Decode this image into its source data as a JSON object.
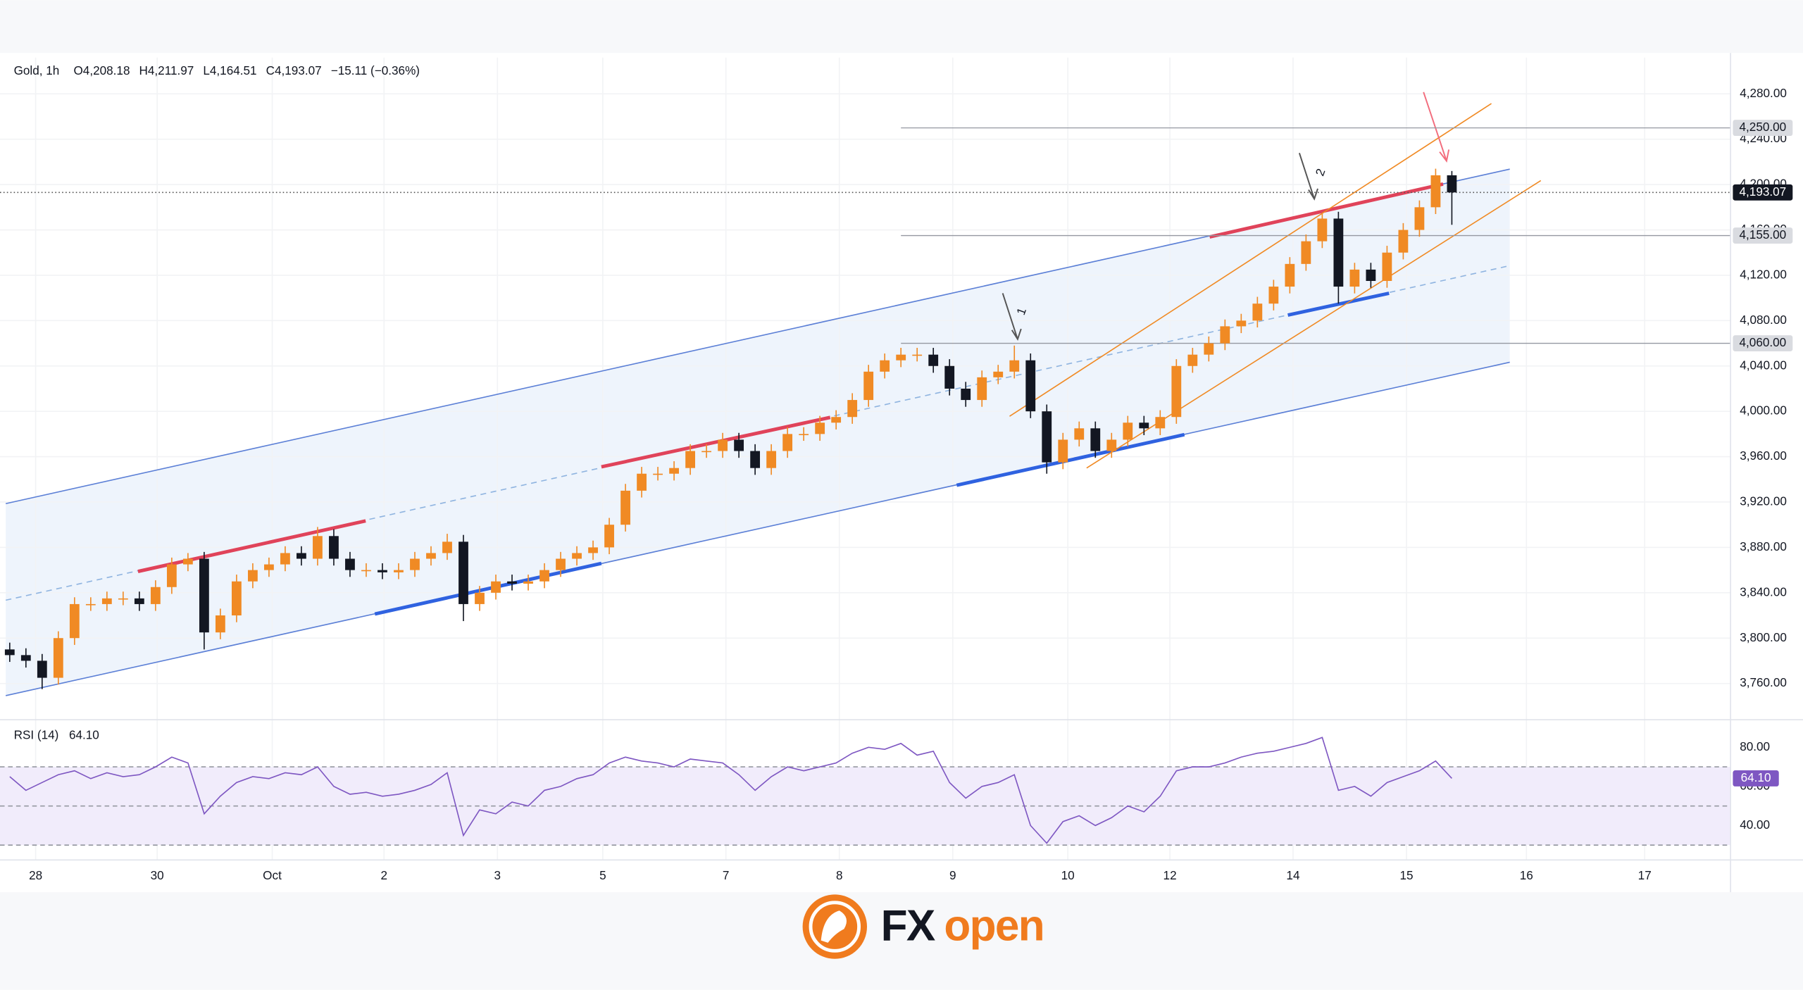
{
  "chart_data": [
    {
      "type": "candlestick",
      "title": "Gold, 1h",
      "legend_values": [
        "O4,208.18",
        "H4,211.97",
        "L4,164.51",
        "C4,193.07",
        "−15.11 (−0.36%)"
      ],
      "up_color": "#f08a24",
      "down_color": "#131722",
      "open": [
        3790,
        3785,
        3780,
        3765,
        3800,
        3830,
        3830,
        3835,
        3835,
        3830,
        3845,
        3865,
        3870,
        3805,
        3820,
        3850,
        3860,
        3865,
        3875,
        3870,
        3890,
        3870,
        3860,
        3860,
        3858,
        3860,
        3870,
        3875,
        3885,
        3830,
        3840,
        3850,
        3848,
        3850,
        3860,
        3870,
        3875,
        3880,
        3900,
        3930,
        3945,
        3945,
        3950,
        3965,
        3965,
        3975,
        3965,
        3950,
        3965,
        3980,
        3980,
        3990,
        3995,
        4010,
        4035,
        4045,
        4050,
        4050,
        4040,
        4020,
        4010,
        4030,
        4035,
        4045,
        4000,
        3955,
        3975,
        3985,
        3965,
        3975,
        3990,
        3985,
        3995,
        4040,
        4050,
        4060,
        4075,
        4080,
        4095,
        4110,
        4130,
        4150,
        4170,
        4110,
        4125,
        4115,
        4140,
        4160,
        4180,
        4208.18
      ],
      "high": [
        3796,
        3791,
        3786,
        3806,
        3836,
        3836,
        3841,
        3841,
        3841,
        3851,
        3871,
        3875,
        3876,
        3826,
        3856,
        3866,
        3871,
        3881,
        3881,
        3898,
        3896,
        3876,
        3866,
        3866,
        3866,
        3876,
        3881,
        3892,
        3891,
        3846,
        3856,
        3856,
        3856,
        3866,
        3876,
        3881,
        3886,
        3906,
        3936,
        3951,
        3951,
        3956,
        3971,
        3971,
        3981,
        3981,
        3971,
        3971,
        3986,
        3986,
        3996,
        4001,
        4016,
        4041,
        4051,
        4056,
        4056,
        4056,
        4046,
        4026,
        4036,
        4041,
        4058,
        4051,
        4006,
        3981,
        3991,
        3991,
        3981,
        3996,
        3996,
        4001,
        4046,
        4056,
        4066,
        4081,
        4086,
        4101,
        4116,
        4136,
        4156,
        4175,
        4176,
        4131,
        4131,
        4146,
        4166,
        4186,
        4214,
        4211.97
      ],
      "low": [
        3779,
        3774,
        3755,
        3759,
        3794,
        3824,
        3824,
        3829,
        3824,
        3824,
        3839,
        3859,
        3790,
        3799,
        3814,
        3844,
        3854,
        3859,
        3864,
        3864,
        3864,
        3854,
        3854,
        3852,
        3852,
        3854,
        3864,
        3869,
        3815,
        3824,
        3834,
        3842,
        3842,
        3844,
        3854,
        3864,
        3869,
        3874,
        3894,
        3924,
        3939,
        3939,
        3944,
        3959,
        3959,
        3959,
        3944,
        3944,
        3959,
        3974,
        3974,
        3984,
        3989,
        4004,
        4029,
        4039,
        4044,
        4034,
        4014,
        4004,
        4004,
        4024,
        4029,
        3994,
        3945,
        3949,
        3969,
        3959,
        3959,
        3969,
        3979,
        3979,
        3989,
        4034,
        4044,
        4054,
        4069,
        4074,
        4089,
        4104,
        4124,
        4144,
        4095,
        4104,
        4109,
        4109,
        4134,
        4154,
        4174,
        4164.51
      ],
      "close": [
        3785,
        3780,
        3765,
        3800,
        3830,
        3830,
        3835,
        3835,
        3830,
        3845,
        3865,
        3870,
        3805,
        3820,
        3850,
        3860,
        3865,
        3875,
        3870,
        3890,
        3870,
        3860,
        3860,
        3858,
        3860,
        3870,
        3875,
        3885,
        3830,
        3840,
        3850,
        3848,
        3850,
        3860,
        3870,
        3875,
        3880,
        3900,
        3930,
        3945,
        3945,
        3950,
        3965,
        3965,
        3975,
        3965,
        3950,
        3965,
        3980,
        3980,
        3990,
        3995,
        4010,
        4035,
        4045,
        4050,
        4050,
        4040,
        4020,
        4010,
        4030,
        4035,
        4045,
        4000,
        3955,
        3975,
        3985,
        3965,
        3975,
        3990,
        3985,
        3995,
        4040,
        4050,
        4060,
        4075,
        4080,
        4095,
        4110,
        4130,
        4150,
        4170,
        4110,
        4125,
        4115,
        4140,
        4160,
        4180,
        4208.18,
        4193.07
      ],
      "xlim": [
        -0.6,
        106.2
      ],
      "xticks": [
        {
          "value": 1.6,
          "label": "28"
        },
        {
          "value": 9.1,
          "label": "30"
        },
        {
          "value": 16.2,
          "label": "Oct"
        },
        {
          "value": 23.1,
          "label": "2"
        },
        {
          "value": 30.1,
          "label": "3"
        },
        {
          "value": 36.6,
          "label": "5"
        },
        {
          "value": 44.2,
          "label": "7"
        },
        {
          "value": 51.2,
          "label": "8"
        },
        {
          "value": 58.2,
          "label": "9"
        },
        {
          "value": 65.3,
          "label": "10"
        },
        {
          "value": 71.6,
          "label": "12"
        },
        {
          "value": 79.2,
          "label": "14"
        },
        {
          "value": 86.2,
          "label": "15"
        },
        {
          "value": 93.6,
          "label": "16"
        },
        {
          "value": 100.9,
          "label": "17"
        }
      ],
      "ylim": [
        3729,
        4312
      ],
      "yticks": [
        {
          "value": 3760,
          "label": "3,760.00"
        },
        {
          "value": 3800,
          "label": "3,800.00"
        },
        {
          "value": 3840,
          "label": "3,840.00"
        },
        {
          "value": 3880,
          "label": "3,880.00"
        },
        {
          "value": 3920,
          "label": "3,920.00"
        },
        {
          "value": 3960,
          "label": "3,960.00"
        },
        {
          "value": 4000,
          "label": "4,000.00"
        },
        {
          "value": 4040,
          "label": "4,040.00"
        },
        {
          "value": 4080,
          "label": "4,080.00"
        },
        {
          "value": 4120,
          "label": "4,120.00"
        },
        {
          "value": 4160,
          "label": "4,160.00"
        },
        {
          "value": 4200,
          "label": "4,200.00"
        },
        {
          "value": 4240,
          "label": "4,240.00"
        },
        {
          "value": 4280,
          "label": "4,280.00"
        }
      ],
      "levels": [
        {
          "value": 4250,
          "label": "4,250.00"
        },
        {
          "value": 4155,
          "label": "4,155.00"
        },
        {
          "value": 4060,
          "label": "4,060.00"
        }
      ],
      "last": {
        "value": 4193.07,
        "label": "4,193.07"
      },
      "annotations": [
        "1",
        "2"
      ]
    },
    {
      "type": "line",
      "title": "RSI (14)",
      "color": "#7e57c2",
      "values": [
        65,
        58,
        62,
        66,
        68,
        64,
        67,
        65,
        66,
        70,
        75,
        72,
        46,
        55,
        62,
        65,
        64,
        67,
        66,
        70,
        60,
        56,
        57,
        55,
        56,
        58,
        61,
        67,
        35,
        48,
        46,
        52,
        50,
        58,
        60,
        64,
        66,
        72,
        75,
        73,
        72,
        70,
        74,
        73,
        72,
        66,
        58,
        65,
        70,
        68,
        70,
        72,
        77,
        80,
        79,
        82,
        76,
        78,
        62,
        54,
        60,
        62,
        66,
        40,
        31,
        42,
        45,
        40,
        44,
        50,
        47,
        55,
        68,
        70,
        70,
        72,
        75,
        77,
        78,
        80,
        82,
        85,
        58,
        60,
        55,
        62,
        65,
        68,
        73,
        64.1
      ],
      "value_label": "64.10",
      "ylim": [
        22.4,
        92.9
      ],
      "yticks": [
        {
          "value": 40,
          "label": "40.00"
        },
        {
          "value": 60,
          "label": "60.00"
        },
        {
          "value": 80,
          "label": "80.00"
        }
      ],
      "levels": [
        30,
        50,
        70
      ]
    }
  ],
  "logo": {
    "part1": "FX",
    "part2": "open"
  }
}
